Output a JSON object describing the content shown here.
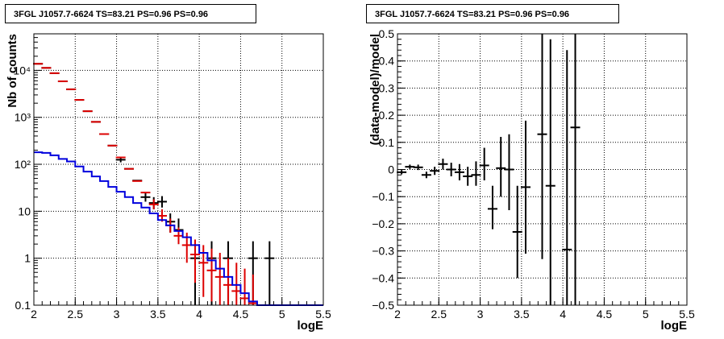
{
  "chart_data": [
    {
      "type": "scatter",
      "title": "3FGL J1057.7-6624 TS=83.21 PS=0.96 PS=0.96",
      "xlabel": "logE",
      "ylabel": "Nb of counts",
      "xlim": [
        2,
        5.5
      ],
      "ylim": [
        0.1,
        60000
      ],
      "yscale": "log",
      "grid": true,
      "x_ticks": [
        "2",
        "2.5",
        "3",
        "3.5",
        "4",
        "4.5",
        "5",
        "5.5"
      ],
      "y_ticks": [
        "0.1",
        "1",
        "10",
        "10²",
        "10³",
        "10⁴"
      ],
      "series": [
        {
          "color": "#000000",
          "style": "errorbar",
          "points": [
            {
              "x": 2.05,
              "y": 13800
            },
            {
              "x": 2.15,
              "y": 11300
            },
            {
              "x": 2.25,
              "y": 8700
            },
            {
              "x": 2.35,
              "y": 5850
            },
            {
              "x": 2.45,
              "y": 3950
            },
            {
              "x": 2.55,
              "y": 2350
            },
            {
              "x": 2.65,
              "y": 1350
            },
            {
              "x": 2.75,
              "y": 800
            },
            {
              "x": 2.85,
              "y": 440
            },
            {
              "x": 2.95,
              "y": 250
            },
            {
              "x": 3.05,
              "y": 125,
              "ylo": 110,
              "yhi": 140
            },
            {
              "x": 3.15,
              "y": 80
            },
            {
              "x": 3.25,
              "y": 45
            },
            {
              "x": 3.35,
              "y": 20,
              "ylo": 16,
              "yhi": 25
            },
            {
              "x": 3.45,
              "y": 15,
              "ylo": 11,
              "yhi": 20
            },
            {
              "x": 3.55,
              "y": 16,
              "ylo": 12,
              "yhi": 21
            },
            {
              "x": 3.65,
              "y": 6,
              "ylo": 3.5,
              "yhi": 9
            },
            {
              "x": 3.75,
              "y": 4,
              "ylo": 2,
              "yhi": 7
            },
            {
              "x": 3.95,
              "y": 1,
              "ylo": 0.1,
              "yhi": 2.3
            },
            {
              "x": 4.15,
              "y": 1,
              "ylo": 0.1,
              "yhi": 2.3
            },
            {
              "x": 4.35,
              "y": 1,
              "ylo": 0.1,
              "yhi": 2.3
            },
            {
              "x": 4.65,
              "y": 1,
              "ylo": 0.1,
              "yhi": 2.3
            },
            {
              "x": 4.85,
              "y": 1,
              "ylo": 0.1,
              "yhi": 2.3
            }
          ]
        },
        {
          "color": "#dd0000",
          "style": "errorbar",
          "points": [
            {
              "x": 2.05,
              "y": 13800
            },
            {
              "x": 2.15,
              "y": 11300
            },
            {
              "x": 2.25,
              "y": 8700
            },
            {
              "x": 2.35,
              "y": 5850
            },
            {
              "x": 2.45,
              "y": 3950
            },
            {
              "x": 2.55,
              "y": 2350
            },
            {
              "x": 2.65,
              "y": 1350
            },
            {
              "x": 2.75,
              "y": 800
            },
            {
              "x": 2.85,
              "y": 440
            },
            {
              "x": 2.95,
              "y": 250
            },
            {
              "x": 3.05,
              "y": 140
            },
            {
              "x": 3.15,
              "y": 80
            },
            {
              "x": 3.25,
              "y": 44
            },
            {
              "x": 3.35,
              "y": 25
            },
            {
              "x": 3.45,
              "y": 14,
              "ylo": 11,
              "yhi": 18
            },
            {
              "x": 3.55,
              "y": 8,
              "ylo": 6,
              "yhi": 11
            },
            {
              "x": 3.65,
              "y": 5,
              "ylo": 3.5,
              "yhi": 7
            },
            {
              "x": 3.75,
              "y": 3,
              "ylo": 2,
              "yhi": 4.5
            },
            {
              "x": 3.85,
              "y": 1.9,
              "ylo": 0.8,
              "yhi": 3.5
            },
            {
              "x": 3.95,
              "y": 1.2,
              "ylo": 0.3,
              "yhi": 2.5
            },
            {
              "x": 4.05,
              "y": 0.8,
              "ylo": 0.15,
              "yhi": 1.9
            },
            {
              "x": 4.15,
              "y": 0.55,
              "ylo": 0.12,
              "yhi": 1.6
            },
            {
              "x": 4.25,
              "y": 0.4,
              "ylo": 0.1,
              "yhi": 1.3
            },
            {
              "x": 4.35,
              "y": 0.27,
              "ylo": 0.1,
              "yhi": 1.0
            },
            {
              "x": 4.45,
              "y": 0.2,
              "ylo": 0.1,
              "yhi": 0.8
            },
            {
              "x": 4.55,
              "y": 0.14,
              "ylo": 0.1,
              "yhi": 0.6
            },
            {
              "x": 4.65,
              "y": 0.11,
              "ylo": 0.1,
              "yhi": 0.45
            }
          ]
        },
        {
          "color": "#0000dd",
          "style": "step",
          "points": [
            {
              "x": 2.0,
              "y": 180
            },
            {
              "x": 2.1,
              "y": 175
            },
            {
              "x": 2.2,
              "y": 155
            },
            {
              "x": 2.3,
              "y": 130
            },
            {
              "x": 2.4,
              "y": 115
            },
            {
              "x": 2.5,
              "y": 90
            },
            {
              "x": 2.6,
              "y": 70
            },
            {
              "x": 2.7,
              "y": 55
            },
            {
              "x": 2.8,
              "y": 44
            },
            {
              "x": 2.9,
              "y": 33
            },
            {
              "x": 3.0,
              "y": 26
            },
            {
              "x": 3.1,
              "y": 20
            },
            {
              "x": 3.2,
              "y": 15
            },
            {
              "x": 3.3,
              "y": 12
            },
            {
              "x": 3.4,
              "y": 9
            },
            {
              "x": 3.5,
              "y": 6.5
            },
            {
              "x": 3.6,
              "y": 5
            },
            {
              "x": 3.7,
              "y": 3.8
            },
            {
              "x": 3.8,
              "y": 2.8
            },
            {
              "x": 3.9,
              "y": 1.9
            },
            {
              "x": 4.0,
              "y": 1.3
            },
            {
              "x": 4.1,
              "y": 0.9
            },
            {
              "x": 4.2,
              "y": 0.6
            },
            {
              "x": 4.3,
              "y": 0.4
            },
            {
              "x": 4.4,
              "y": 0.27
            },
            {
              "x": 4.5,
              "y": 0.18
            },
            {
              "x": 4.6,
              "y": 0.12
            },
            {
              "x": 4.7,
              "y": 0.1
            }
          ]
        }
      ]
    },
    {
      "type": "scatter",
      "title": "3FGL J1057.7-6624 TS=83.21 PS=0.96 PS=0.96",
      "xlabel": "logE",
      "ylabel": "(data-model)/model",
      "xlim": [
        2,
        5.5
      ],
      "ylim": [
        -0.5,
        0.5
      ],
      "grid": true,
      "x_ticks": [
        "2",
        "2.5",
        "3",
        "3.5",
        "4",
        "4.5",
        "5",
        "5.5"
      ],
      "y_ticks": [
        "−0.5",
        "−0.4",
        "−0.3",
        "−0.2",
        "−0.1",
        "0",
        "0.1",
        "0.2",
        "0.3",
        "0.4",
        "0.5"
      ],
      "series": [
        {
          "color": "#000000",
          "style": "errorbar",
          "points": [
            {
              "x": 2.05,
              "y": -0.01,
              "ylo": -0.018,
              "yhi": -0.002
            },
            {
              "x": 2.15,
              "y": 0.01,
              "ylo": 0.002,
              "yhi": 0.018
            },
            {
              "x": 2.25,
              "y": 0.008,
              "ylo": -0.002,
              "yhi": 0.018
            },
            {
              "x": 2.35,
              "y": -0.02,
              "ylo": -0.032,
              "yhi": -0.008
            },
            {
              "x": 2.45,
              "y": -0.005,
              "ylo": -0.02,
              "yhi": 0.01
            },
            {
              "x": 2.55,
              "y": 0.02,
              "ylo": 0.0,
              "yhi": 0.04
            },
            {
              "x": 2.65,
              "y": 0.0,
              "ylo": -0.025,
              "yhi": 0.025
            },
            {
              "x": 2.75,
              "y": -0.01,
              "ylo": -0.04,
              "yhi": 0.02
            },
            {
              "x": 2.85,
              "y": -0.025,
              "ylo": -0.06,
              "yhi": 0.01
            },
            {
              "x": 2.95,
              "y": -0.02,
              "ylo": -0.06,
              "yhi": 0.03
            },
            {
              "x": 3.05,
              "y": 0.015,
              "ylo": -0.04,
              "yhi": 0.08
            },
            {
              "x": 3.15,
              "y": -0.145,
              "ylo": -0.22,
              "yhi": -0.06
            },
            {
              "x": 3.25,
              "y": 0.005,
              "ylo": -0.1,
              "yhi": 0.12
            },
            {
              "x": 3.35,
              "y": 0.0,
              "ylo": -0.15,
              "yhi": 0.13
            },
            {
              "x": 3.45,
              "y": -0.23,
              "ylo": -0.4,
              "yhi": -0.06
            },
            {
              "x": 3.55,
              "y": -0.065,
              "ylo": -0.31,
              "yhi": 0.18
            },
            {
              "x": 3.75,
              "y": 0.13,
              "ylo": -0.33,
              "yhi": 0.5
            },
            {
              "x": 3.85,
              "y": -0.06,
              "ylo": -0.5,
              "yhi": 0.48
            },
            {
              "x": 4.05,
              "y": -0.295,
              "ylo": -0.5,
              "yhi": 0.44
            },
            {
              "x": 4.15,
              "y": 0.155,
              "ylo": -0.5,
              "yhi": 0.5
            }
          ]
        }
      ]
    }
  ]
}
